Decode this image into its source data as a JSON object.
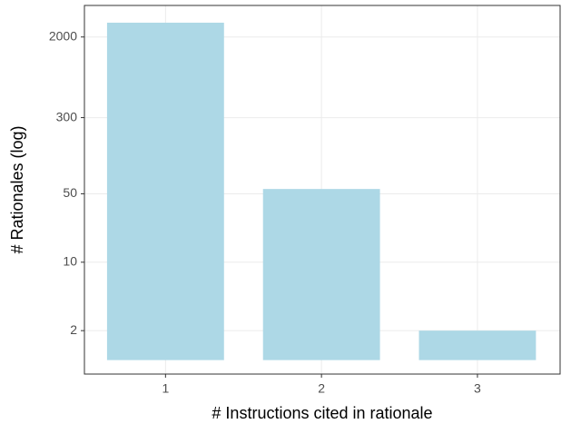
{
  "chart_data": {
    "type": "bar",
    "x_label": "# Instructions cited in rationale",
    "y_label": "# Rationales (log)",
    "categories": [
      "1",
      "2",
      "3"
    ],
    "values": [
      2800,
      56,
      2
    ],
    "color": "#add8e6",
    "log_scale": true,
    "ylim": [
      0.72,
      4200
    ],
    "yticks": [
      2,
      10,
      50,
      300,
      2000
    ],
    "grid": true
  }
}
